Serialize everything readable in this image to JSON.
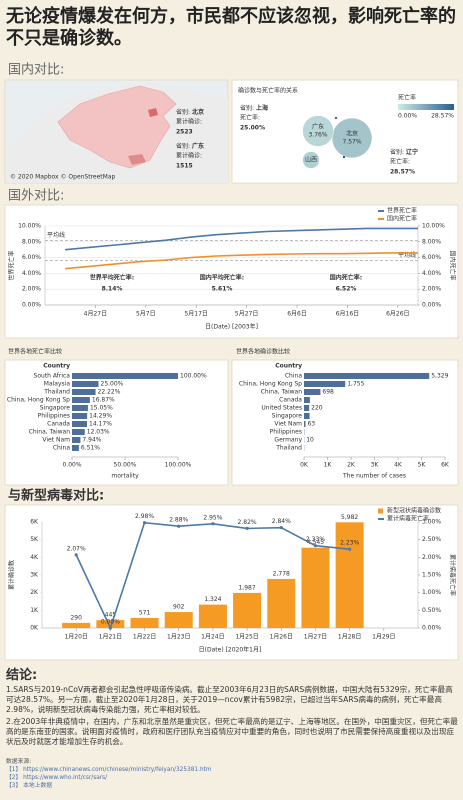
{
  "title": "无论疫情爆发在何方，市民都不应该忽视，影响死亡率的不只是确诊数。",
  "sections": [
    "国内对比:",
    "国外对比:",
    "与新型病毒对比:"
  ],
  "chart_data": [
    {
      "type": "map",
      "annotations": [
        {
          "label": "省别:",
          "name": "北京",
          "stat_label": "累计确诊:",
          "stat": 2523
        },
        {
          "label": "省别:",
          "name": "广东",
          "stat_label": "累计确诊:",
          "stat": 1515
        }
      ],
      "credit": "© 2020 Mapbox © OpenStreetMap"
    },
    {
      "type": "bubble",
      "title": "确诊数与死亡率的关系",
      "labels": [
        "北京",
        "广东",
        "山西",
        null,
        null
      ],
      "sizes": [
        2523,
        1515,
        448,
        8,
        7
      ],
      "values": [
        7.57,
        3.76,
        5.36,
        25,
        28.57
      ],
      "value_labels": [
        "7.57%",
        "3.76%",
        null,
        null,
        null
      ],
      "legend_title": "死亡率",
      "colorlim": [
        {
          "value": 0,
          "label": "0.00%"
        },
        {
          "value": 28.57,
          "label": "28.57%"
        }
      ],
      "colors": [
        "#cfe9e3",
        "#2b5f8e"
      ],
      "annotations": [
        {
          "label": "省别:",
          "name": "上海",
          "stat_label": "死亡率:",
          "stat": "25.00%"
        },
        {
          "label": "省别:",
          "name": "辽宁",
          "stat_label": "死亡率:",
          "stat": "28.57%"
        }
      ]
    },
    {
      "type": "line",
      "x": [
        "2003-04-21",
        "2003-04-26",
        "2003-05-01",
        "2003-05-06",
        "2003-05-11",
        "2003-05-16",
        "2003-05-21",
        "2003-05-26",
        "2003-05-31",
        "2003-06-05",
        "2003-06-10",
        "2003-06-15",
        "2003-06-20",
        "2003-06-25",
        "2003-06-30"
      ],
      "xlim": [
        "2003-04-17",
        "2003-06-30"
      ],
      "xticks": [
        {
          "value": "2003-04-27",
          "label": "4月27日"
        },
        {
          "value": "2003-05-07",
          "label": "5月7日"
        },
        {
          "value": "2003-05-17",
          "label": "5月17日"
        },
        {
          "value": "2003-05-27",
          "label": "5月27日"
        },
        {
          "value": "2003-06-06",
          "label": "6月6日"
        },
        {
          "value": "2003-06-16",
          "label": "6月16日"
        },
        {
          "value": "2003-06-26",
          "label": "6月26日"
        }
      ],
      "xlabel": "日(Date) [2003年]",
      "ylabel": "世界死亡率",
      "y2label": "国内死亡率",
      "ylim": [
        0,
        10
      ],
      "yticks": [
        {
          "value": 0,
          "label": "0.00%"
        },
        {
          "value": 2,
          "label": "2.00%"
        },
        {
          "value": 4,
          "label": "4.00%"
        },
        {
          "value": 6,
          "label": "6.00%"
        },
        {
          "value": 8,
          "label": "8.00%"
        },
        {
          "value": 10,
          "label": "10.00%"
        }
      ],
      "y2lim": [
        0,
        10
      ],
      "y2ticks": [
        {
          "value": 0,
          "label": "0.00%"
        },
        {
          "value": 2,
          "label": "2.00%"
        },
        {
          "value": 4,
          "label": "4.00%"
        },
        {
          "value": 6,
          "label": "6.00%"
        },
        {
          "value": 8,
          "label": "8.00%"
        },
        {
          "value": 10,
          "label": "10.00%"
        }
      ],
      "series": [
        {
          "name": "世界死亡率",
          "color": "#4e79a7",
          "values": [
            7.0,
            7.3,
            7.6,
            7.9,
            8.2,
            8.6,
            8.9,
            9.1,
            9.3,
            9.4,
            9.5,
            9.6,
            9.7,
            9.7,
            9.7
          ]
        },
        {
          "name": "国内死亡率",
          "color": "#f28e2b",
          "axis": "y2",
          "values": [
            4.6,
            4.9,
            5.2,
            5.5,
            5.7,
            6.0,
            6.2,
            6.3,
            6.4,
            6.45,
            6.5,
            6.5,
            6.55,
            6.6,
            6.6
          ]
        }
      ],
      "reference_lines": [
        {
          "value": 8.14,
          "label": "平均线"
        },
        {
          "value": 5.61,
          "label": "平均线"
        }
      ],
      "annotations": [
        {
          "text": "世界平均死亡率:",
          "value_label": "8.14%"
        },
        {
          "text": "国内平均死亡率:",
          "value_label": "5.61%"
        },
        {
          "text": "国内死亡率:",
          "value_label": "6.52%"
        }
      ],
      "legend": "top-right",
      "grid": true
    },
    {
      "type": "hbar",
      "title": "世界各地死亡率比较",
      "category_header": "Country",
      "categories": [
        "South Africa",
        "Malaysia",
        "Thailand",
        "China, Hong Kong Sp",
        "Singapore",
        "Philippines",
        "Canada",
        "China, Taiwan",
        "Viet Nam",
        "China"
      ],
      "values": [
        100,
        25,
        22.22,
        16.87,
        15.05,
        14.29,
        14.17,
        12.03,
        7.94,
        6.51
      ],
      "value_labels": [
        "100.00%",
        "25.00%",
        "22.22%",
        "16.87%",
        "15.05%",
        "14.29%",
        "14.17%",
        "12.03%",
        "7.94%",
        "6.51%"
      ],
      "color": "#4e6f9b",
      "xlim": [
        0,
        100
      ],
      "xticks": [
        {
          "value": 0,
          "label": "0.00%"
        },
        {
          "value": 50,
          "label": "50.00%"
        },
        {
          "value": 100,
          "label": "100.00%"
        }
      ],
      "xlabel": "mortality"
    },
    {
      "type": "hbar",
      "title": "世界各地确诊数比较",
      "category_header": "Country",
      "categories": [
        "China",
        "China, Hong Kong Sp",
        "China, Taiwan",
        "Canada",
        "United States",
        "Singapore",
        "Viet Nam",
        "Philippines",
        "Germany",
        "Thailand"
      ],
      "values": [
        5329,
        1755,
        698,
        251,
        220,
        238,
        63,
        14,
        10,
        9
      ],
      "value_labels": [
        "5,329",
        "1,755",
        "698",
        null,
        "220",
        null,
        "63",
        null,
        "10",
        null
      ],
      "color": "#4e6f9b",
      "xlim": [
        0,
        6000
      ],
      "xticks": [
        {
          "value": 0,
          "label": "0K"
        },
        {
          "value": 1000,
          "label": "1K"
        },
        {
          "value": 2000,
          "label": "2K"
        },
        {
          "value": 3000,
          "label": "3K"
        },
        {
          "value": 4000,
          "label": "4K"
        },
        {
          "value": 5000,
          "label": "5K"
        },
        {
          "value": 6000,
          "label": "6K"
        }
      ],
      "xlabel": "The number of cases"
    },
    {
      "type": "combo",
      "x": [
        "2020-01-20",
        "2020-01-21",
        "2020-01-22",
        "2020-01-23",
        "2020-01-24",
        "2020-01-25",
        "2020-01-26",
        "2020-01-27",
        "2020-01-28"
      ],
      "xlim": [
        "2020-01-19",
        "2020-01-30"
      ],
      "xticks": [
        {
          "value": "2020-01-20",
          "label": "1月20日"
        },
        {
          "value": "2020-01-21",
          "label": "1月21日"
        },
        {
          "value": "2020-01-22",
          "label": "1月22日"
        },
        {
          "value": "2020-01-23",
          "label": "1月23日"
        },
        {
          "value": "2020-01-24",
          "label": "1月24日"
        },
        {
          "value": "2020-01-25",
          "label": "1月25日"
        },
        {
          "value": "2020-01-26",
          "label": "1月26日"
        },
        {
          "value": "2020-01-27",
          "label": "1月27日"
        },
        {
          "value": "2020-01-28",
          "label": "1月28日"
        },
        {
          "value": "2020-01-29",
          "label": "1月29日"
        }
      ],
      "xlabel": "日(Date) [2020年1月]",
      "ylabel": "累计确诊数",
      "y2label": "累计病毒死亡率",
      "ylim": [
        0,
        6000
      ],
      "yticks": [
        {
          "value": 0,
          "label": "0K"
        },
        {
          "value": 1000,
          "label": "1K"
        },
        {
          "value": 2000,
          "label": "2K"
        },
        {
          "value": 3000,
          "label": "3K"
        },
        {
          "value": 4000,
          "label": "4K"
        },
        {
          "value": 5000,
          "label": "5K"
        },
        {
          "value": 6000,
          "label": "6K"
        }
      ],
      "y2lim": [
        0,
        3
      ],
      "y2ticks": [
        {
          "value": 0,
          "label": "0.00%"
        },
        {
          "value": 0.5,
          "label": "0.50%"
        },
        {
          "value": 1,
          "label": "1.00%"
        },
        {
          "value": 1.5,
          "label": "1.50%"
        },
        {
          "value": 2,
          "label": "2.00%"
        },
        {
          "value": 2.5,
          "label": "2.50%"
        },
        {
          "value": 3,
          "label": "3.00%"
        }
      ],
      "series": [
        {
          "name": "新型冠状病毒确诊数",
          "type": "bar",
          "color": "#f59a23",
          "values": [
            290,
            445,
            571,
            902,
            1324,
            1987,
            2778,
            4545,
            5982
          ],
          "value_labels": [
            "290",
            "445",
            "571",
            "902",
            "1,324",
            "1,987",
            "2,778",
            "4,545",
            "5,982"
          ]
        },
        {
          "name": "累计病毒死亡率",
          "type": "line",
          "axis": "y2",
          "color": "#4e79a7",
          "values": [
            2.07,
            0,
            2.98,
            2.88,
            2.95,
            2.82,
            2.84,
            2.33,
            2.23
          ],
          "value_labels": [
            "2.07%",
            "0.00%",
            "2.98%",
            "2.88%",
            "2.95%",
            "2.82%",
            "2.84%",
            "2.33%",
            "2.23%"
          ]
        }
      ],
      "legend": "top-right",
      "grid": false
    }
  ],
  "conclusion": {
    "title": "结论:",
    "paragraphs": [
      "1.SARS与2019-nCoV两者都会引起急性呼吸道传染病。截止至2003年6月23日的SARS病例数据，中国大陆有5329宗，死亡率最高可达28.57%。另一方面，截止至2020年1月28日，关于2019—ncov累计有5982宗，已超过当年SARS病毒的病例，死亡率最高2.98%，说明新型冠状病毒传染能力强，死亡率相对较低。",
      "2.在2003年非典疫情中，在国内，广东和北京虽然是重灾区，但死亡率最高的是辽宁、上海等地区。在国外，中国重灾区，但死亡率最高的是东南亚的国家。说明面对疫情时，政府和医疗团队充当疫情应对中重要的角色，同时也说明了市民需要保持高度重视以及出现症状后及时就医才能增加生存的机会。"
    ]
  },
  "references": {
    "title": "数据来源:",
    "items": [
      "【1】 https://www.chinanews.com/chinese/ministry/feiyan/325381.htm",
      "【2】 https://www.who.int/csr/sars/",
      "【3】 本地上数据"
    ]
  }
}
